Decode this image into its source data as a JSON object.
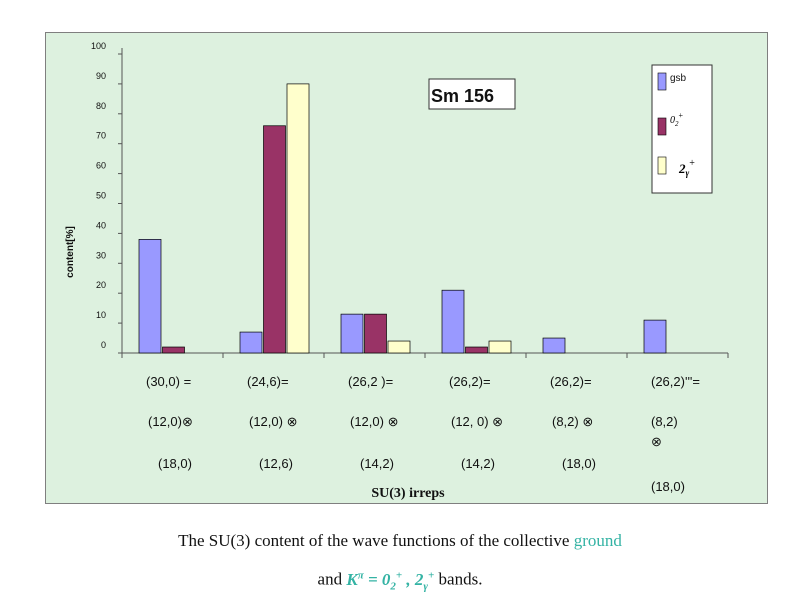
{
  "chart_data": {
    "type": "bar",
    "title": "Sm 156",
    "ylabel": "content[%]",
    "xlabel": "SU(3) irreps",
    "ylim": [
      0,
      100
    ],
    "yticks": [
      "0",
      "10",
      "20",
      "30",
      "40",
      "50",
      "60",
      "70",
      "80",
      "90",
      "100"
    ],
    "legend_position": "top-right",
    "categories": [
      [
        "(30,0) =",
        "(12,0)⊗",
        "(18,0)"
      ],
      [
        "(24,6)=",
        "(12,0) ⊗",
        "(12,6)"
      ],
      [
        "(26,2 )=",
        "(12,0) ⊗",
        "(14,2)"
      ],
      [
        "(26,2)=",
        "(12, 0) ⊗",
        "(14,2)"
      ],
      [
        "(26,2)=",
        "(8,2) ⊗",
        "(18,0)"
      ],
      [
        "(26,2)'''=",
        "(8,2)",
        "⊗",
        "(18,0)"
      ]
    ],
    "series": [
      {
        "name": "gsb",
        "color": "#9999ff",
        "values": [
          38,
          7,
          13,
          21,
          5,
          11
        ]
      },
      {
        "name_main": "0",
        "name_sub": "2",
        "name_sup": "+",
        "color": "#993366",
        "values": [
          2,
          76,
          13,
          2,
          0,
          0
        ]
      },
      {
        "name_main": "2",
        "name_sub": "γ",
        "name_sup": "+",
        "color": "#ffffcc",
        "values": [
          0,
          90,
          4,
          4,
          0,
          0
        ]
      }
    ]
  },
  "caption": {
    "line1_prefix": "The SU(3) content of the wave functions of the collective ",
    "line1_highlight": "ground",
    "line2_prefix": "and ",
    "k_main": "K",
    "k_sup": "π",
    "eq": " = ",
    "b1_main": "0",
    "b1_sub": "2",
    "b1_sup": "+",
    "comma": " , ",
    "b2_main": "2",
    "b2_sub": "γ",
    "b2_sup": "+",
    "line2_suffix": " bands."
  }
}
